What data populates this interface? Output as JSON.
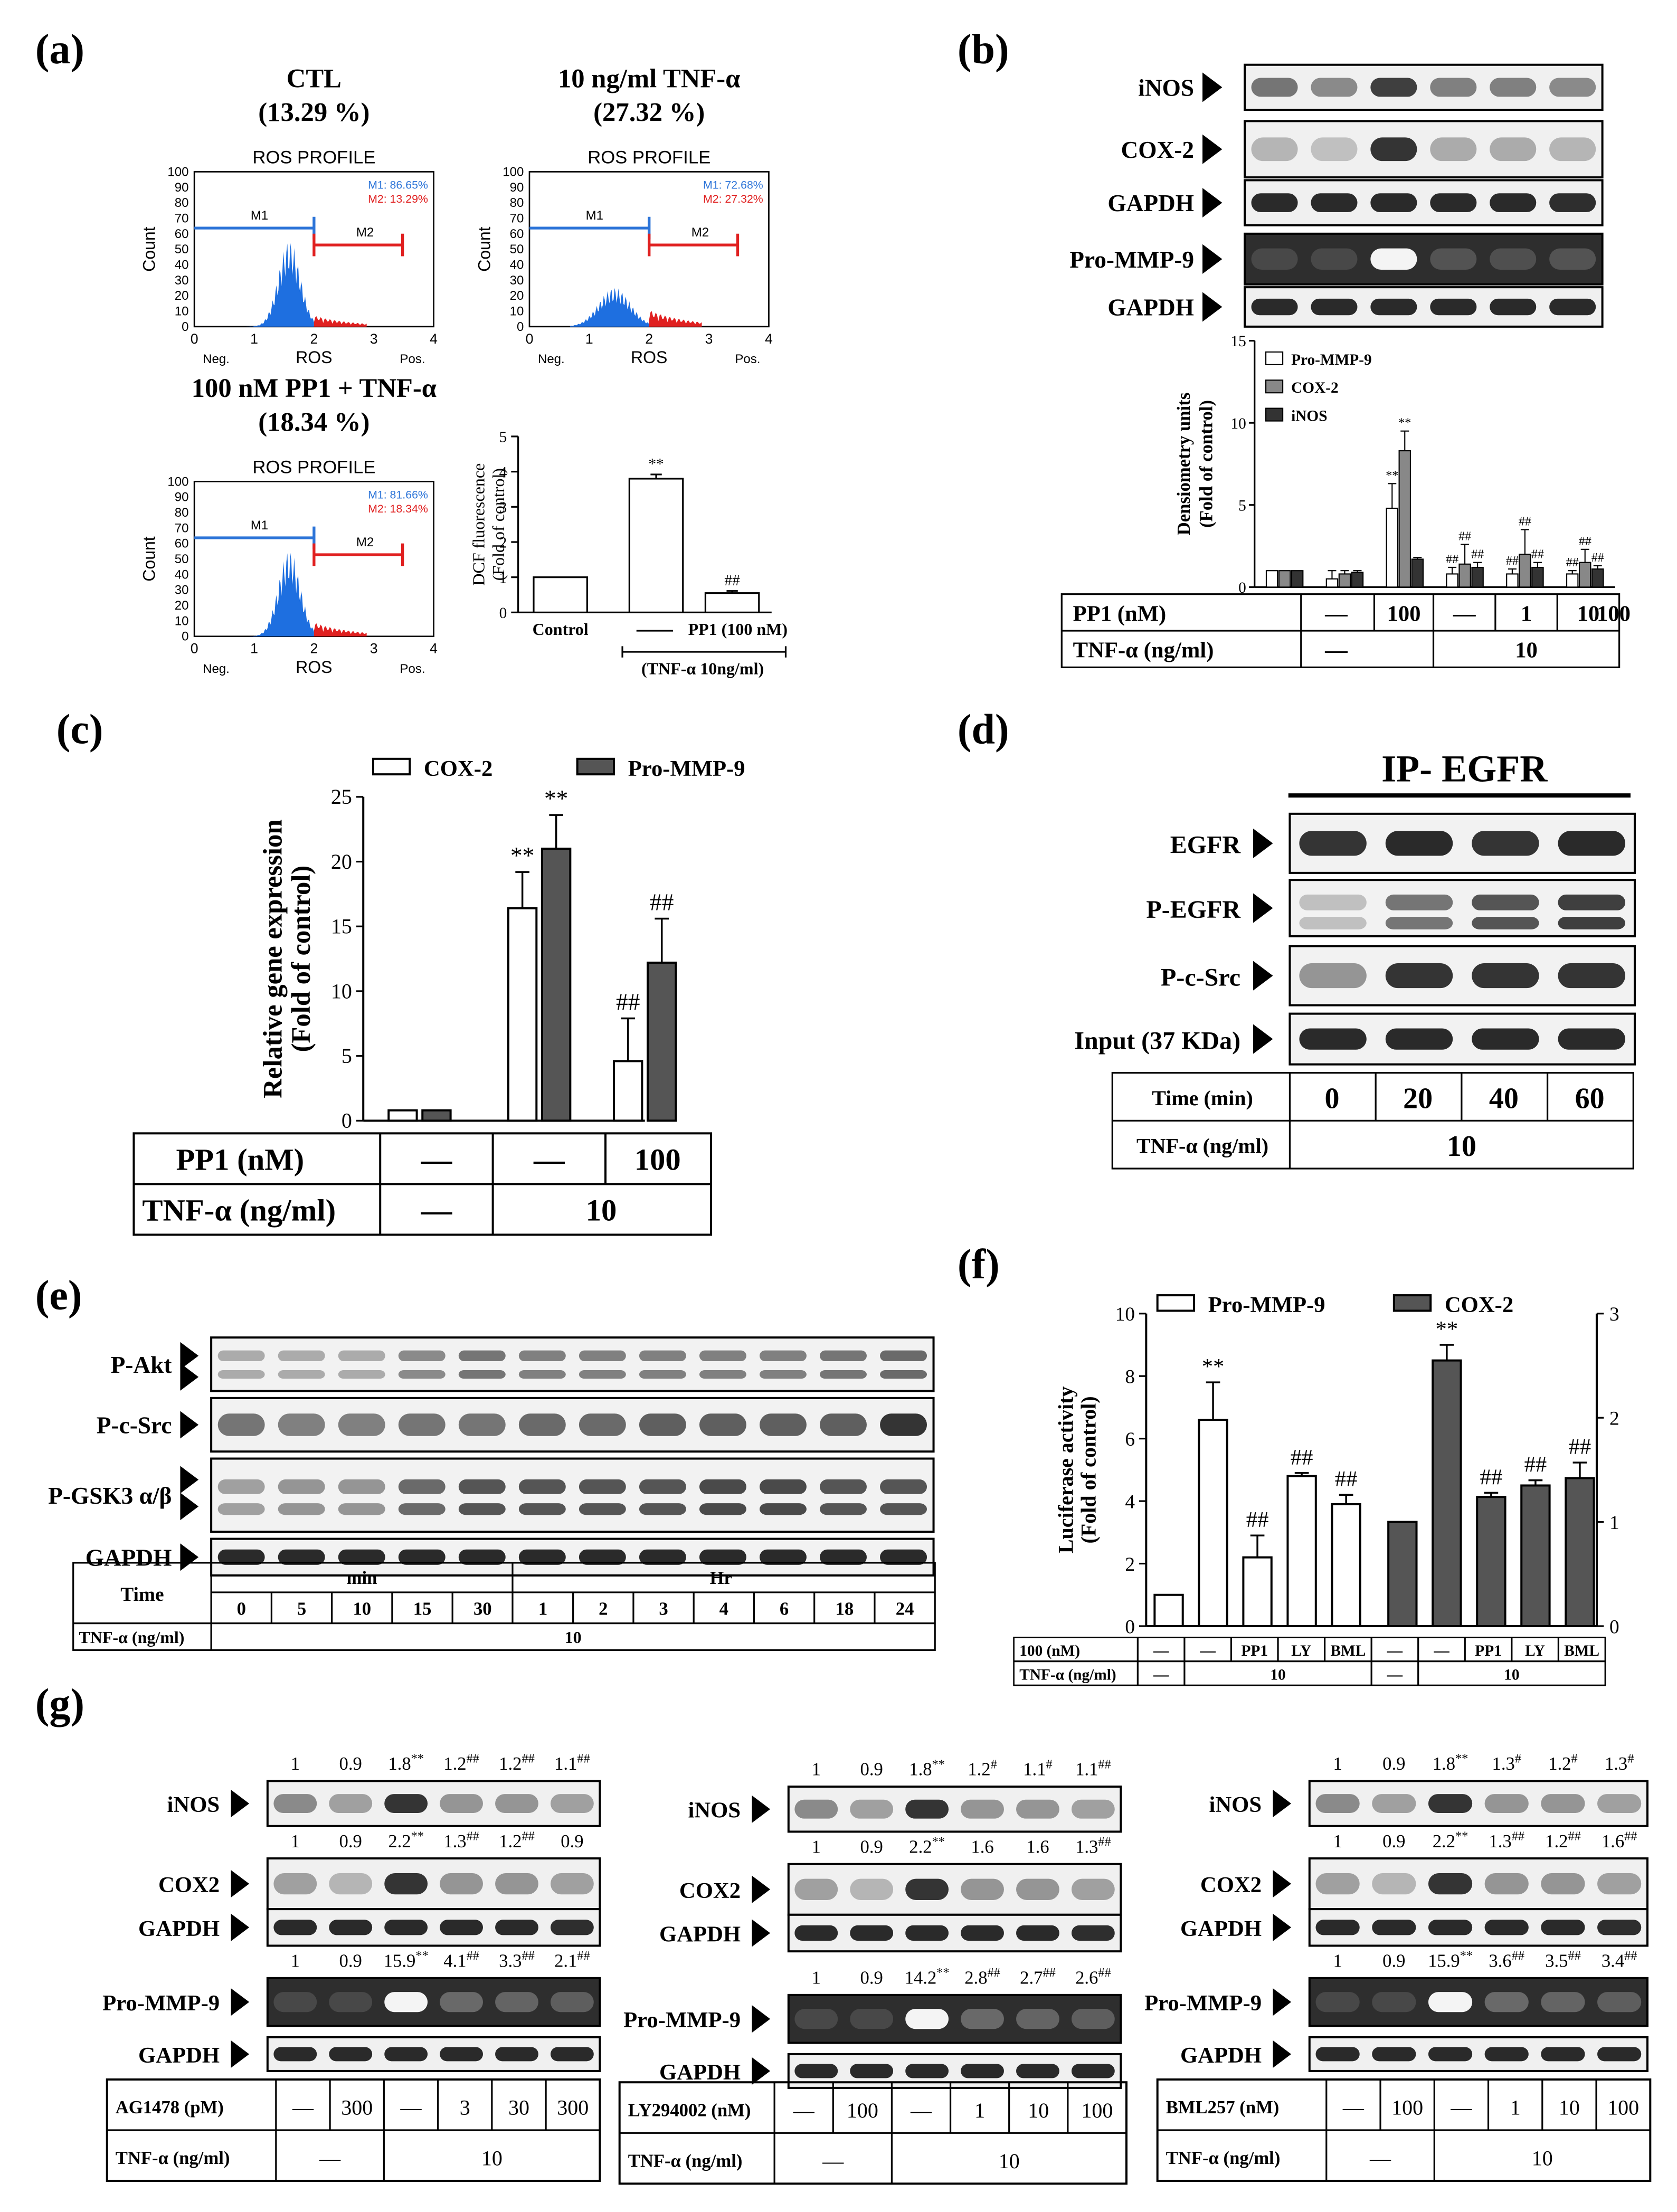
{
  "panel_letters": [
    "(a)",
    "(b)",
    "(c)",
    "(d)",
    "(e)",
    "(f)",
    "(g)"
  ],
  "a": {
    "histograms": [
      {
        "title": "CTL",
        "pct": "(13.29 %)",
        "profile": "ROS PROFILE",
        "m1": "M1: 86.65%",
        "m2": "M2: 13.29%"
      },
      {
        "title": "10 ng/ml TNF-α",
        "pct": "(27.32 %)",
        "profile": "ROS PROFILE",
        "m1": "M1: 72.68%",
        "m2": "M2: 27.32%"
      },
      {
        "title": "100 nM PP1 + TNF-α",
        "pct": "(18.34 %)",
        "profile": "ROS PROFILE",
        "m1": "M1: 81.66%",
        "m2": "M2: 18.34%"
      }
    ],
    "axis": {
      "ylabel": "Count",
      "xlabel": "ROS",
      "neg": "Neg.",
      "pos": "Pos.",
      "yticks": [
        "0",
        "10",
        "20",
        "30",
        "40",
        "50",
        "60",
        "70",
        "80",
        "90",
        "100"
      ],
      "xticks": [
        "0",
        "1",
        "2",
        "3",
        "4"
      ],
      "m1": "M1",
      "m2": "M2"
    },
    "colors": {
      "histogram": "#1e6fe0",
      "m1_bar": "#2c74d8",
      "m2_bar": "#e02020",
      "m2_fill": "#e02020"
    }
  },
  "b": {
    "blot_labels": [
      "iNOS",
      "COX-2",
      "GAPDH",
      "Pro-MMP-9",
      "GAPDH"
    ],
    "table": {
      "row1_label": "PP1 (nM)",
      "row1": [
        "—",
        "100",
        "—",
        "1",
        "10",
        "100"
      ],
      "row2_label": "TNF-α (ng/ml)",
      "row2": [
        "—",
        "10"
      ]
    }
  },
  "c": {
    "table": {
      "row1_label": "PP1 (nM)",
      "row1": [
        "—",
        "—",
        "100"
      ],
      "row2_label": "TNF-α (ng/ml)",
      "row2": [
        "—",
        "10"
      ]
    }
  },
  "d": {
    "title": "IP- EGFR",
    "blot_labels": [
      "EGFR",
      "P-EGFR",
      "P-c-Src",
      "Input (37 KDa)"
    ],
    "table": {
      "row1_label": "Time (min)",
      "row1": [
        "0",
        "20",
        "40",
        "60"
      ],
      "row2_label": "TNF-α (ng/ml)",
      "row2": [
        "10"
      ]
    }
  },
  "e": {
    "blot_labels": [
      "P-Akt",
      "P-c-Src",
      "P-GSK3 α/β",
      "GAPDH"
    ],
    "table": {
      "time_label": "Time",
      "min_label": "min",
      "hr_label": "Hr",
      "times": [
        "0",
        "5",
        "10",
        "15",
        "30",
        "1",
        "2",
        "3",
        "4",
        "6",
        "18",
        "24"
      ],
      "tnf_label": "TNF-α (ng/ml)",
      "tnf_value": "10"
    }
  },
  "f": {
    "table": {
      "row1_label": "100 (nM)",
      "row1": [
        "—",
        "—",
        "PP1",
        "LY",
        "BML",
        "—",
        "—",
        "PP1",
        "LY",
        "BML"
      ],
      "row2_label": "TNF-α (ng/ml)",
      "row2": [
        "—",
        "10",
        "—",
        "10"
      ]
    }
  },
  "g": {
    "panels": [
      {
        "inos_nums": [
          "1",
          "0.9",
          "1.8**",
          "1.2##",
          "1.2##",
          "1.1##"
        ],
        "cox_nums": [
          "1",
          "0.9",
          "2.2**",
          "1.3##",
          "1.2##",
          "0.9"
        ],
        "mmp_nums": [
          "1",
          "0.9",
          "15.9**",
          "4.1##",
          "3.3##",
          "2.1##"
        ],
        "blot_labels": [
          "iNOS",
          "COX2",
          "GAPDH",
          "Pro-MMP-9",
          "GAPDH"
        ],
        "row1_label": "AG1478 (pM)",
        "row1": [
          "—",
          "300",
          "—",
          "3",
          "30",
          "300"
        ],
        "row2_label": "TNF-α (ng/ml)",
        "row2": [
          "—",
          "10"
        ]
      },
      {
        "inos_nums": [
          "1",
          "0.9",
          "1.8**",
          "1.2#",
          "1.1#",
          "1.1##"
        ],
        "cox_nums": [
          "1",
          "0.9",
          "2.2**",
          "1.6",
          "1.6",
          "1.3##"
        ],
        "mmp_nums": [
          "1",
          "0.9",
          "14.2**",
          "2.8##",
          "2.7##",
          "2.6##"
        ],
        "blot_labels": [
          "iNOS",
          "COX2",
          "GAPDH",
          "Pro-MMP-9",
          "GAPDH"
        ],
        "row1_label": "LY294002 (nM)",
        "row1": [
          "—",
          "100",
          "—",
          "1",
          "10",
          "100"
        ],
        "row2_label": "TNF-α (ng/ml)",
        "row2": [
          "—",
          "10"
        ]
      },
      {
        "inos_nums": [
          "1",
          "0.9",
          "1.8**",
          "1.3#",
          "1.2#",
          "1.3#"
        ],
        "cox_nums": [
          "1",
          "0.9",
          "2.2**",
          "1.3##",
          "1.2##",
          "1.6##"
        ],
        "mmp_nums": [
          "1",
          "0.9",
          "15.9**",
          "3.6##",
          "3.5##",
          "3.4##"
        ],
        "blot_labels": [
          "iNOS",
          "COX2",
          "GAPDH",
          "Pro-MMP-9",
          "GAPDH"
        ],
        "row1_label": "BML257 (nM)",
        "row1": [
          "—",
          "100",
          "—",
          "1",
          "10",
          "100"
        ],
        "row2_label": "TNF-α (ng/ml)",
        "row2": [
          "—",
          "10"
        ]
      }
    ]
  },
  "chart_data": [
    {
      "type": "bar",
      "panel": "a",
      "categories": [
        "Control",
        "",
        "PP1 (100 nM)"
      ],
      "values": [
        1.0,
        3.8,
        0.55
      ],
      "errors": [
        0,
        0.12,
        0.06
      ],
      "annotations": [
        "",
        "**",
        "##"
      ],
      "xlabel": "",
      "ylabel": "DCF fluorescence (Fold of control)",
      "bracket_label": "(TNF-α 10ng/ml)",
      "ylim": [
        0,
        5
      ],
      "yticks": [
        0,
        1,
        2,
        3,
        4,
        5
      ]
    },
    {
      "type": "bar",
      "panel": "b",
      "categories": [
        "1",
        "2",
        "3",
        "4",
        "5",
        "6"
      ],
      "series": [
        {
          "name": "Pro-MMP-9",
          "values": [
            1.0,
            0.5,
            4.8,
            0.8,
            0.8,
            0.8
          ],
          "errors": [
            0,
            0.5,
            1.5,
            0.4,
            0.3,
            0.2
          ],
          "annotations": [
            "",
            "",
            "**",
            "##",
            "##",
            "##"
          ]
        },
        {
          "name": "COX-2",
          "values": [
            1.0,
            0.8,
            8.3,
            1.4,
            2.0,
            1.5
          ],
          "errors": [
            0,
            0.2,
            1.2,
            1.2,
            1.5,
            0.8
          ],
          "annotations": [
            "",
            "",
            "**",
            "##",
            "##",
            "##"
          ]
        },
        {
          "name": "iNOS",
          "values": [
            1.0,
            0.9,
            1.7,
            1.2,
            1.2,
            1.1
          ],
          "errors": [
            0,
            0.1,
            0.1,
            0.3,
            0.3,
            0.2
          ],
          "annotations": [
            "",
            "",
            "",
            "##",
            "##",
            "##"
          ]
        }
      ],
      "ylabel": "Densiometry units (Fold of control)",
      "ylim": [
        0,
        15
      ],
      "yticks": [
        0,
        5,
        10,
        15
      ],
      "colors": [
        "#ffffff",
        "#888888",
        "#333333"
      ],
      "legend": "top-left"
    },
    {
      "type": "bar",
      "panel": "c",
      "categories": [
        "1",
        "2",
        "3"
      ],
      "series": [
        {
          "name": "COX-2",
          "values": [
            0.8,
            16.4,
            4.6
          ],
          "errors": [
            0,
            2.8,
            3.3
          ],
          "annotations": [
            "",
            "**",
            "##"
          ]
        },
        {
          "name": "Pro-MMP-9",
          "values": [
            0.8,
            21.0,
            12.2
          ],
          "errors": [
            0,
            2.6,
            3.4
          ],
          "annotations": [
            "",
            "**",
            "##"
          ]
        }
      ],
      "ylabel": "Relative gene expression (Fold of control)",
      "ylim": [
        0,
        25
      ],
      "yticks": [
        0,
        5,
        10,
        15,
        20,
        25
      ],
      "colors": [
        "#ffffff",
        "#555555"
      ],
      "legend": "top"
    },
    {
      "type": "bar",
      "panel": "f",
      "categories": [
        "1",
        "2",
        "3",
        "4",
        "5"
      ],
      "series": [
        {
          "name": "Pro-MMP-9",
          "axis": "left",
          "values": [
            1.0,
            6.6,
            2.2,
            4.8,
            3.9
          ],
          "errors": [
            0,
            1.2,
            0.7,
            0.1,
            0.3
          ],
          "annotations": [
            "",
            "**",
            "##",
            "##",
            "##"
          ]
        },
        {
          "name": "COX-2",
          "axis": "right",
          "values": [
            1.0,
            2.55,
            1.24,
            1.35,
            1.42
          ],
          "errors": [
            0,
            0.15,
            0.04,
            0.05,
            0.15
          ],
          "annotations": [
            "",
            "**",
            "##",
            "##",
            "##"
          ]
        }
      ],
      "ylabel": "Luciferase activity (Fold of control)",
      "ylim": [
        0,
        10
      ],
      "yticks": [
        0,
        2,
        4,
        6,
        8,
        10
      ],
      "y2lim": [
        0,
        3
      ],
      "y2ticks": [
        0,
        1,
        2,
        3
      ],
      "colors": [
        "#ffffff",
        "#555555"
      ],
      "legend": "top"
    }
  ]
}
